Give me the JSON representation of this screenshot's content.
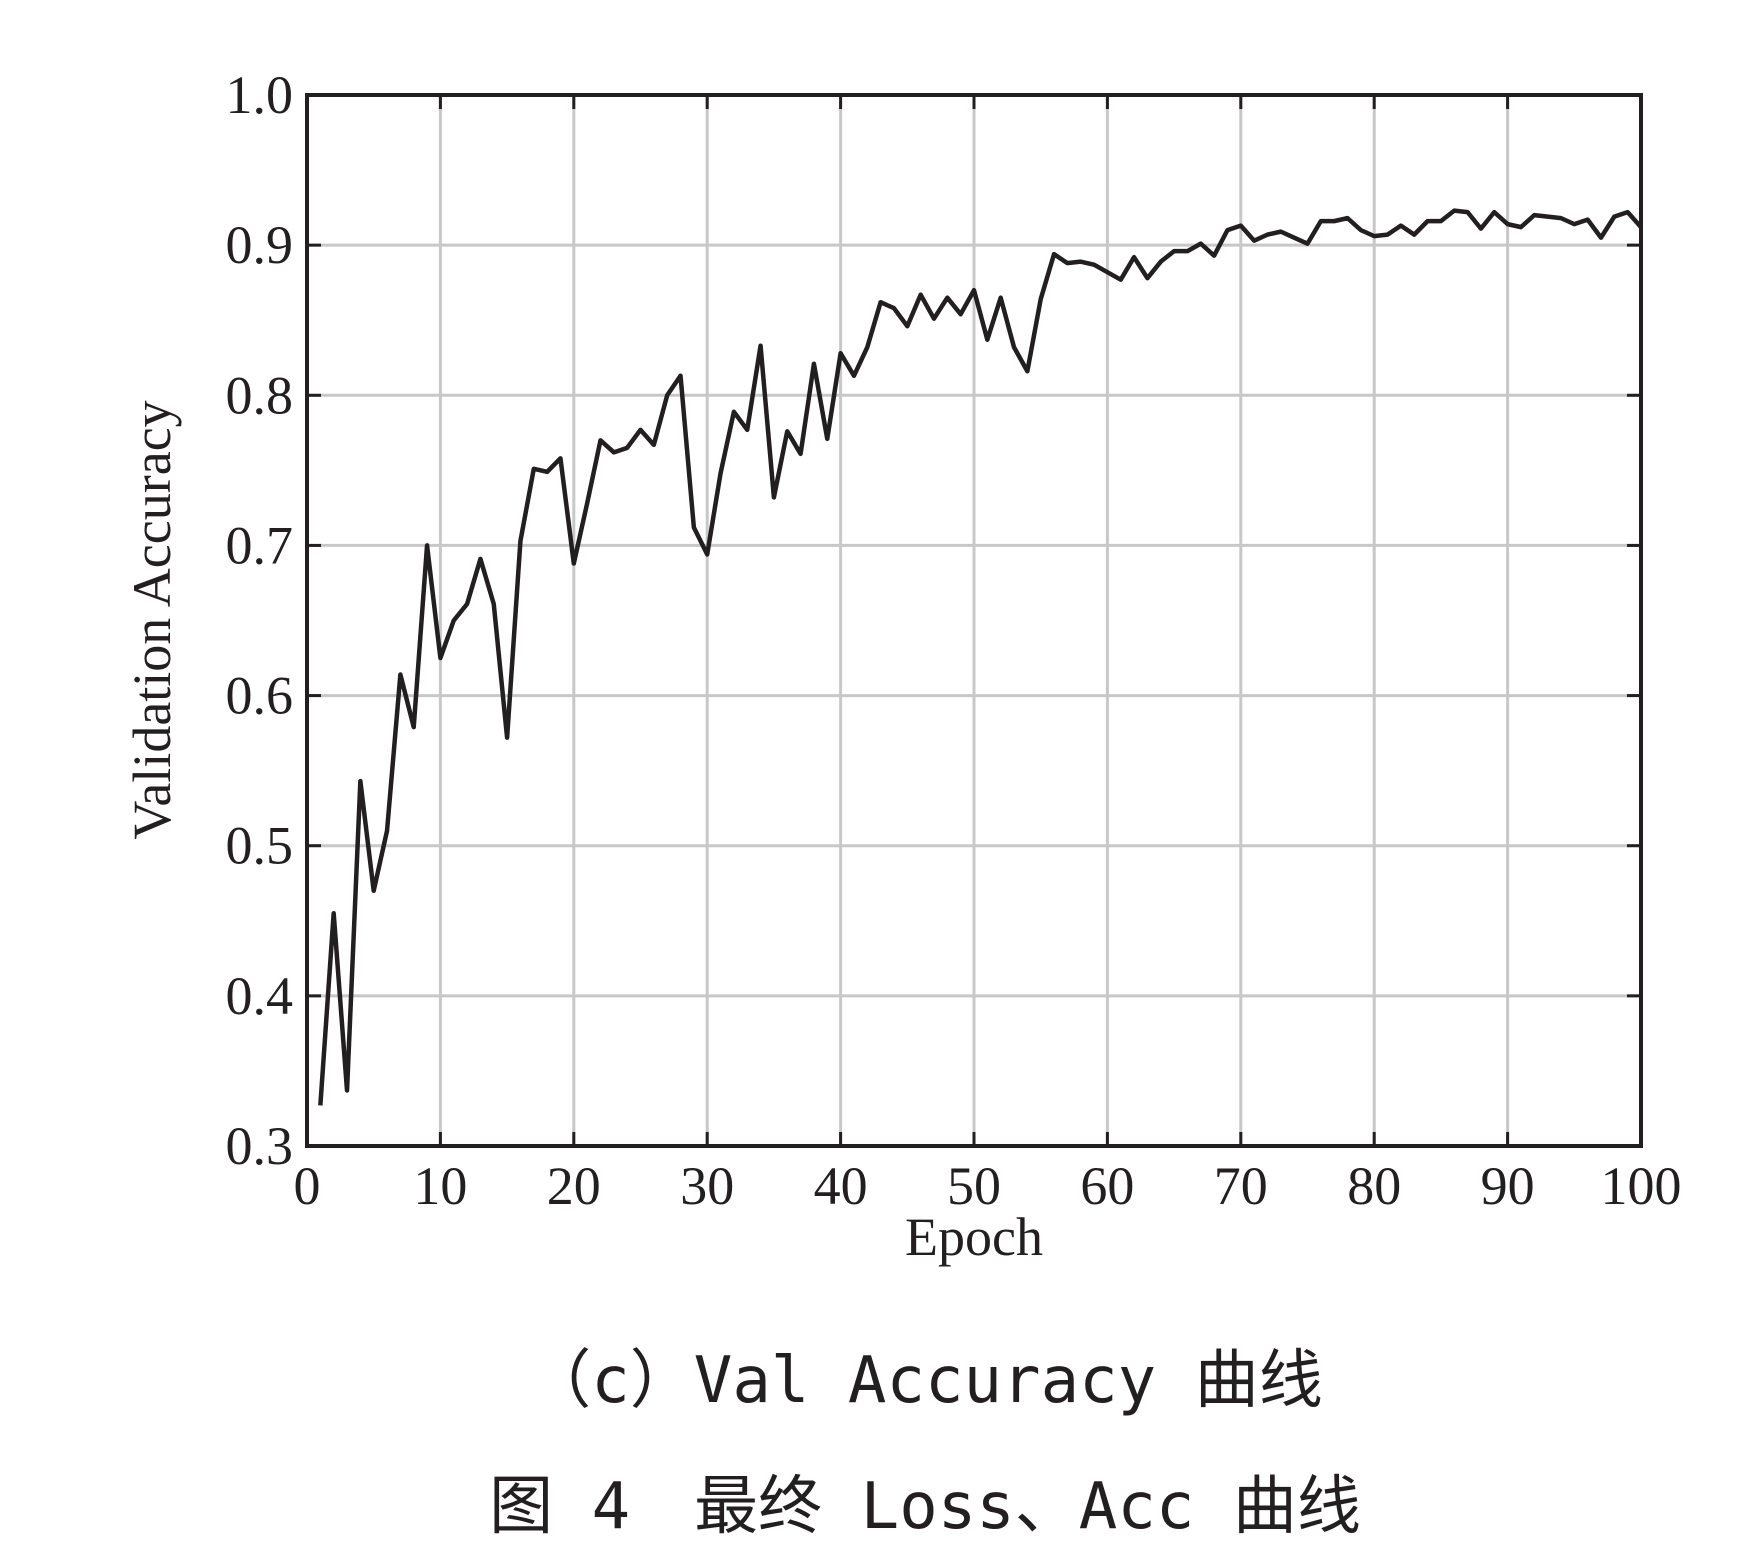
{
  "chart_data": {
    "type": "line",
    "xlabel": "Epoch",
    "ylabel": "Validation Accuracy",
    "x": [
      1,
      2,
      3,
      4,
      5,
      6,
      7,
      8,
      9,
      10,
      11,
      12,
      13,
      14,
      15,
      16,
      17,
      18,
      19,
      20,
      21,
      22,
      23,
      24,
      25,
      26,
      27,
      28,
      29,
      30,
      31,
      32,
      33,
      34,
      35,
      36,
      37,
      38,
      39,
      40,
      41,
      42,
      43,
      44,
      45,
      46,
      47,
      48,
      49,
      50,
      51,
      52,
      53,
      54,
      55,
      56,
      57,
      58,
      59,
      60,
      61,
      62,
      63,
      64,
      65,
      66,
      67,
      68,
      69,
      70,
      71,
      72,
      73,
      74,
      75,
      76,
      77,
      78,
      79,
      80,
      81,
      82,
      83,
      84,
      85,
      86,
      87,
      88,
      89,
      90,
      91,
      92,
      93,
      94,
      95,
      96,
      97,
      98,
      99,
      100
    ],
    "values": [
      0.327,
      0.455,
      0.337,
      0.543,
      0.47,
      0.51,
      0.614,
      0.579,
      0.7,
      0.625,
      0.65,
      0.661,
      0.691,
      0.661,
      0.572,
      0.703,
      0.751,
      0.749,
      0.758,
      0.688,
      0.728,
      0.77,
      0.762,
      0.765,
      0.777,
      0.767,
      0.8,
      0.813,
      0.712,
      0.694,
      0.748,
      0.789,
      0.777,
      0.833,
      0.732,
      0.776,
      0.761,
      0.821,
      0.771,
      0.828,
      0.813,
      0.832,
      0.862,
      0.858,
      0.846,
      0.867,
      0.851,
      0.865,
      0.854,
      0.87,
      0.837,
      0.865,
      0.832,
      0.816,
      0.864,
      0.894,
      0.888,
      0.889,
      0.887,
      0.882,
      0.877,
      0.892,
      0.878,
      0.889,
      0.896,
      0.896,
      0.901,
      0.893,
      0.91,
      0.913,
      0.903,
      0.907,
      0.909,
      0.905,
      0.901,
      0.916,
      0.916,
      0.918,
      0.91,
      0.906,
      0.907,
      0.913,
      0.907,
      0.916,
      0.916,
      0.923,
      0.922,
      0.911,
      0.922,
      0.914,
      0.912,
      0.92,
      0.919,
      0.918,
      0.914,
      0.917,
      0.905,
      0.919,
      0.922,
      0.912
    ],
    "color": "#231f20",
    "xlim": [
      0,
      100
    ],
    "xticks": [
      0,
      10,
      20,
      30,
      40,
      50,
      60,
      70,
      80,
      90,
      100
    ],
    "ylim": [
      0.3,
      1
    ],
    "yticks": [
      0.3,
      0.4,
      0.5,
      0.6,
      0.7,
      0.8,
      0.9,
      {
        "value": 1,
        "label": "1.0"
      }
    ],
    "grid": true
  },
  "captions": [
    "（c）Val Accuracy 曲线",
    "图 4　最终 Loss、Acc 曲线"
  ]
}
